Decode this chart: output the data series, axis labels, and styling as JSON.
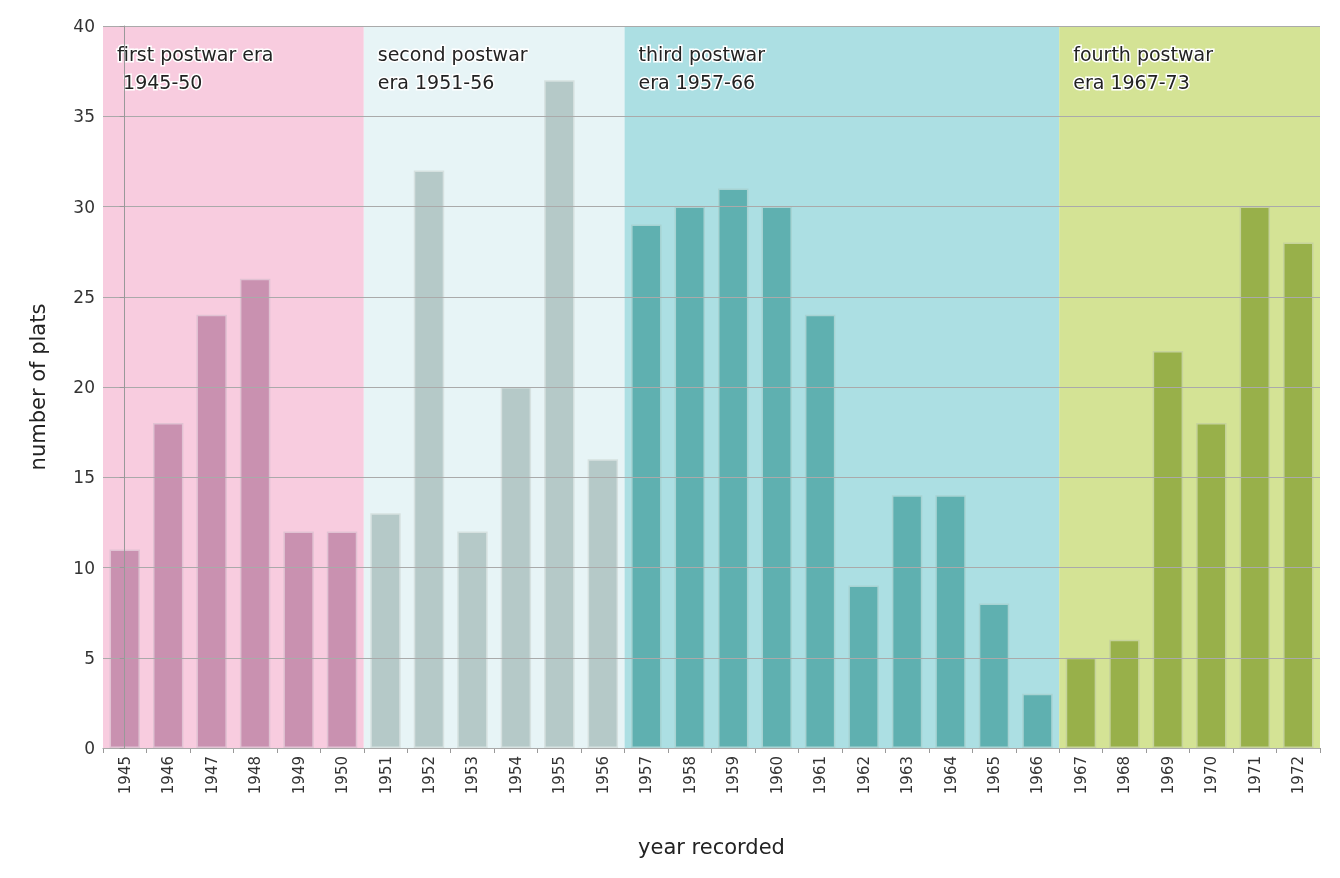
{
  "chart_data": {
    "type": "bar",
    "xlabel": "year recorded",
    "ylabel": "number of plats",
    "categories": [
      "1945",
      "1946",
      "1947",
      "1948",
      "1949",
      "1950",
      "1951",
      "1952",
      "1953",
      "1954",
      "1955",
      "1956",
      "1957",
      "1958",
      "1959",
      "1960",
      "1961",
      "1962",
      "1963",
      "1964",
      "1965",
      "1966",
      "1967",
      "1968",
      "1969",
      "1970",
      "1971",
      "1972"
    ],
    "values": [
      11,
      18,
      24,
      26,
      12,
      12,
      13,
      32,
      12,
      20,
      37,
      16,
      29,
      30,
      31,
      30,
      24,
      9,
      14,
      14,
      8,
      3,
      5,
      6,
      22,
      18,
      30,
      28
    ],
    "colors": [
      "#c991b0",
      "#c991b0",
      "#c991b0",
      "#c991b0",
      "#c991b0",
      "#c991b0",
      "#b5c9c8",
      "#b5c9c8",
      "#b5c9c8",
      "#b5c9c8",
      "#b5c9c8",
      "#b5c9c8",
      "#5fb0b0",
      "#5fb0b0",
      "#5fb0b0",
      "#5fb0b0",
      "#5fb0b0",
      "#5fb0b0",
      "#5fb0b0",
      "#5fb0b0",
      "#5fb0b0",
      "#5fb0b0",
      "#98b04a",
      "#98b04a",
      "#98b04a",
      "#98b04a",
      "#98b04a",
      "#98b04a"
    ],
    "ylim": [
      0,
      40
    ],
    "yticks": [
      0,
      5,
      10,
      15,
      20,
      25,
      30,
      35,
      40
    ],
    "grid": "y",
    "bands": [
      {
        "axis": "x",
        "from": "1945",
        "to": "1950",
        "label": "first postwar era 1945-50",
        "color": "#f7c6dc"
      },
      {
        "axis": "x",
        "from": "1951",
        "to": "1956",
        "label": "second postwar era 1951-56",
        "color": "#e4f3f5"
      },
      {
        "axis": "x",
        "from": "1957",
        "to": "1966",
        "label": "third postwar era 1957-66",
        "color": "#a3dbe0"
      },
      {
        "axis": "x",
        "from": "1967",
        "to": "1972",
        "label": "fourth postwar era 1967-73",
        "color": "#cfe08a"
      }
    ]
  }
}
